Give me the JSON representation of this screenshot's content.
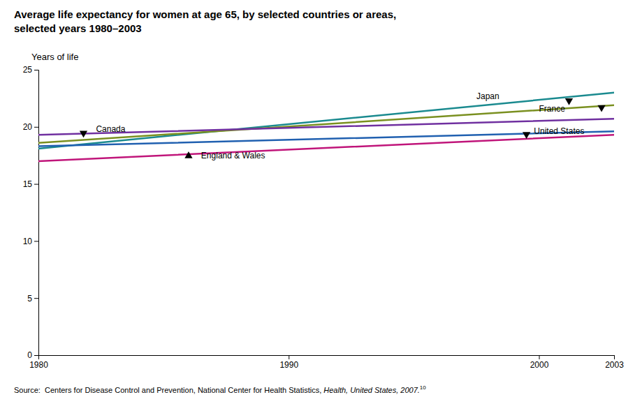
{
  "chart_data": {
    "type": "line",
    "title": [
      "Average life expectancy for women at age 65, by selected countries or areas,",
      "selected years 1980–2003"
    ],
    "ylabel": "Years of life",
    "source": {
      "text": "Source:  Centers for Disease Control and Prevention, National Center for Health Statistics, ",
      "italic": "Health, United States, 2007.",
      "superscript": "10"
    },
    "x": [
      1980,
      2003
    ],
    "xlim": [
      1980,
      2003
    ],
    "xticks": [
      1980,
      1990,
      2000,
      2003
    ],
    "ylim": [
      0,
      25
    ],
    "yticks": [
      0,
      5,
      10,
      15,
      20,
      25
    ],
    "grid": false,
    "series": [
      {
        "name": "Japan",
        "color": "#1a8a8f",
        "values": [
          18.1,
          23.0
        ]
      },
      {
        "name": "France",
        "color": "#7a9020",
        "values": [
          18.6,
          21.9
        ]
      },
      {
        "name": "Canada",
        "color": "#7030a0",
        "values": [
          19.3,
          20.7
        ]
      },
      {
        "name": "United States",
        "color": "#2060b0",
        "values": [
          18.3,
          19.6
        ]
      },
      {
        "name": "England & Wales",
        "color": "#c0157a",
        "values": [
          17.0,
          19.3
        ]
      }
    ],
    "annotations": [
      {
        "text": "Canada",
        "x": 1982.3,
        "y": 19.75,
        "marker": "triangle-down",
        "marker_x": 1981.8,
        "marker_y": 19.45
      },
      {
        "text": "England & Wales",
        "x": 1986.5,
        "y": 17.45,
        "marker": "triangle-up",
        "marker_x": 1986.0,
        "marker_y": 17.45
      },
      {
        "text": "United States",
        "x": 1999.8,
        "y": 19.6,
        "marker": "triangle-down",
        "marker_x": 1999.5,
        "marker_y": 19.35
      },
      {
        "text": "Japan",
        "x": 1997.5,
        "y": 22.6,
        "marker": "triangle-down",
        "marker_x": 2001.2,
        "marker_y": 22.3
      },
      {
        "text": "France",
        "x": 2000.0,
        "y": 21.55,
        "marker": "triangle-down",
        "marker_x": 2002.5,
        "marker_y": 21.7
      }
    ]
  }
}
